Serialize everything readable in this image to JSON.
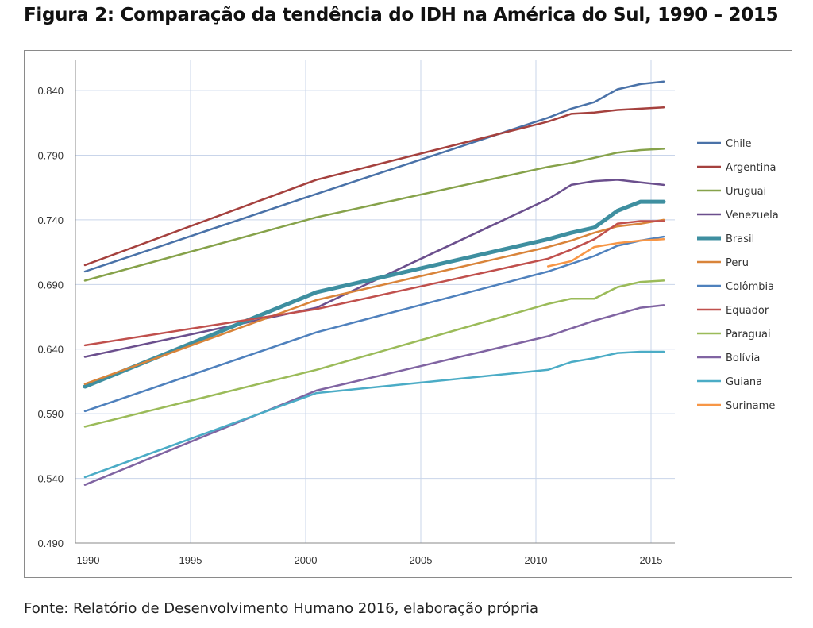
{
  "title": "Figura 2: Comparação da tendência do IDH na América do Sul, 1990 – 2015",
  "source": "Fonte: Relatório de Desenvolvimento Humano 2016, elaboração própria",
  "chart_data": {
    "type": "line",
    "title": "Figura 2: Comparação da tendência do IDH na América do Sul, 1990 – 2015",
    "xlabel": "",
    "ylabel": "",
    "x": [
      1990,
      2000,
      2010,
      2011,
      2012,
      2013,
      2014,
      2015
    ],
    "xticks": [
      "1990",
      "1995",
      "2000",
      "2005",
      "2010",
      "2015"
    ],
    "yticks": [
      "0.490",
      "0.540",
      "0.590",
      "0.640",
      "0.690",
      "0.740",
      "0.790",
      "0.840"
    ],
    "ylim": [
      0.49,
      0.864
    ],
    "xlim": [
      1990,
      2015
    ],
    "grid": true,
    "legend_position": "right",
    "series": [
      {
        "name": "Chile",
        "color": "#4a72a8",
        "values": [
          0.7,
          0.76,
          0.819,
          0.826,
          0.831,
          0.841,
          0.845,
          0.847
        ]
      },
      {
        "name": "Argentina",
        "color": "#a5413e",
        "values": [
          0.705,
          0.771,
          0.816,
          0.822,
          0.823,
          0.825,
          0.826,
          0.827
        ]
      },
      {
        "name": "Uruguai",
        "color": "#86a24a",
        "values": [
          0.693,
          0.742,
          0.781,
          0.784,
          0.788,
          0.792,
          0.794,
          0.795
        ]
      },
      {
        "name": "Venezuela",
        "color": "#6b4f8d",
        "values": [
          0.634,
          0.672,
          0.756,
          0.767,
          0.77,
          0.771,
          0.769,
          0.767
        ]
      },
      {
        "name": "Brasil",
        "color": "#3e8fa0",
        "width": 5,
        "values": [
          0.611,
          0.684,
          0.725,
          0.73,
          0.734,
          0.747,
          0.754,
          0.754
        ]
      },
      {
        "name": "Peru",
        "color": "#d9843a",
        "values": [
          0.613,
          0.678,
          0.719,
          0.724,
          0.73,
          0.735,
          0.737,
          0.74
        ]
      },
      {
        "name": "Colômbia",
        "color": "#4f81bd",
        "values": [
          0.592,
          0.653,
          0.7,
          0.706,
          0.712,
          0.72,
          0.724,
          0.727
        ]
      },
      {
        "name": "Equador",
        "color": "#c0504d",
        "values": [
          0.643,
          0.671,
          0.71,
          0.717,
          0.725,
          0.737,
          0.739,
          0.739
        ]
      },
      {
        "name": "Paraguai",
        "color": "#9bbb59",
        "values": [
          0.58,
          0.624,
          0.675,
          0.679,
          0.679,
          0.688,
          0.692,
          0.693
        ]
      },
      {
        "name": "Bolívia",
        "color": "#8064a2",
        "values": [
          0.535,
          0.608,
          0.65,
          0.656,
          0.662,
          0.667,
          0.672,
          0.674
        ]
      },
      {
        "name": "Guiana",
        "color": "#4bacc6",
        "values": [
          0.541,
          0.606,
          0.624,
          0.63,
          0.633,
          0.637,
          0.638,
          0.638
        ]
      },
      {
        "name": "Suriname",
        "color": "#f79646",
        "values": [
          null,
          null,
          0.704,
          0.708,
          0.719,
          0.722,
          0.724,
          0.725
        ]
      }
    ]
  }
}
